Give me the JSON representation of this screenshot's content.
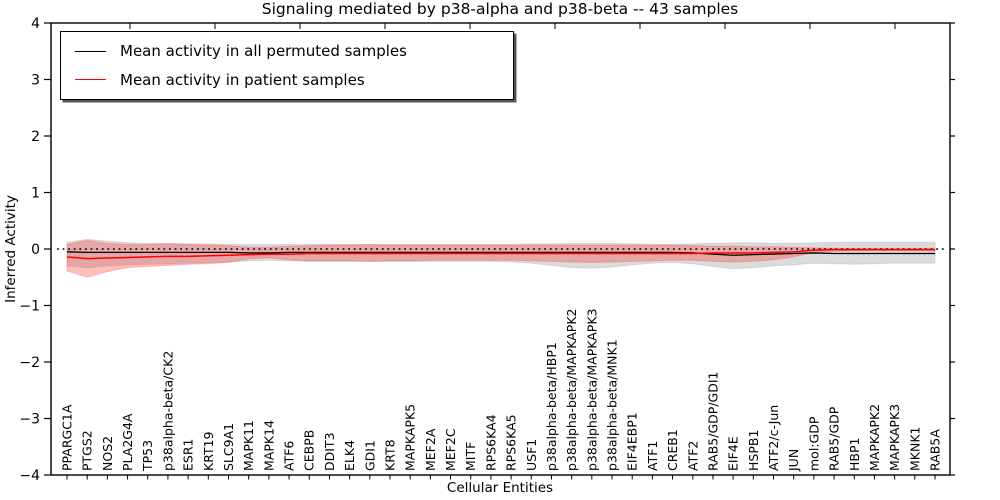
{
  "chart_data": {
    "type": "line",
    "title": "Signaling mediated by p38-alpha and p38-beta -- 43 samples",
    "xlabel": "Cellular Entities",
    "ylabel": "Inferred Activity",
    "ylim": [
      -4,
      4
    ],
    "ytick_values": [
      4,
      3,
      2,
      1,
      0,
      -1,
      -2,
      -3,
      -4
    ],
    "ytick_labels": [
      "4",
      "3",
      "2",
      "1",
      "0",
      "−1",
      "−2",
      "−3",
      "−4"
    ],
    "grid": false,
    "legend_position": "upper left",
    "categories": [
      "PPARGC1A",
      "PTGS2",
      "NOS2",
      "PLA2G4A",
      "TP53",
      "p38alpha-beta/CK2",
      "ESR1",
      "KRT19",
      "SLC9A1",
      "MAPK11",
      "MAPK14",
      "ATF6",
      "CEBPB",
      "DDIT3",
      "ELK4",
      "GDI1",
      "KRT8",
      "MAPKAPK5",
      "MEF2A",
      "MEF2C",
      "MITF",
      "RPS6KA4",
      "RPS6KA5",
      "USF1",
      "p38alpha-beta/HBP1",
      "p38alpha-beta/MAPKAPK2",
      "p38alpha-beta/MAPKAPK3",
      "p38alpha-beta/MNK1",
      "EIF4EBP1",
      "ATF1",
      "CREB1",
      "ATF2",
      "RAB5/GDP/GDI1",
      "EIF4E",
      "HSPB1",
      "ATF2/c-Jun",
      "JUN",
      "mol:GDP",
      "RAB5/GDP",
      "HBP1",
      "MAPKAPK2",
      "MAPKAPK3",
      "MKNK1",
      "RAB5A"
    ],
    "series": [
      {
        "name": "Mean activity in all permuted samples",
        "color": "#000000",
        "line_style": "solid",
        "width": 1.3,
        "values": [
          -0.05,
          -0.06,
          -0.06,
          -0.06,
          -0.06,
          -0.06,
          -0.06,
          -0.06,
          -0.06,
          -0.07,
          -0.07,
          -0.06,
          -0.06,
          -0.06,
          -0.06,
          -0.06,
          -0.06,
          -0.06,
          -0.06,
          -0.06,
          -0.06,
          -0.06,
          -0.06,
          -0.06,
          -0.06,
          -0.06,
          -0.06,
          -0.06,
          -0.06,
          -0.06,
          -0.06,
          -0.07,
          -0.09,
          -0.11,
          -0.1,
          -0.09,
          -0.08,
          -0.07,
          -0.08,
          -0.08,
          -0.08,
          -0.08,
          -0.08,
          -0.08
        ]
      },
      {
        "name": "Mean activity in patient samples",
        "color": "#ff0000",
        "line_style": "solid",
        "width": 1.5,
        "values": [
          -0.14,
          -0.17,
          -0.16,
          -0.15,
          -0.14,
          -0.13,
          -0.13,
          -0.12,
          -0.11,
          -0.1,
          -0.09,
          -0.09,
          -0.08,
          -0.08,
          -0.08,
          -0.08,
          -0.08,
          -0.08,
          -0.08,
          -0.08,
          -0.08,
          -0.08,
          -0.08,
          -0.08,
          -0.08,
          -0.08,
          -0.08,
          -0.08,
          -0.08,
          -0.08,
          -0.08,
          -0.08,
          -0.07,
          -0.07,
          -0.07,
          -0.06,
          -0.05,
          -0.02,
          -0.01,
          -0.01,
          -0.01,
          -0.01,
          -0.01,
          -0.01
        ]
      }
    ],
    "bands": [
      {
        "name": "permuted samples spread",
        "color": "#999999",
        "opacity": 0.35,
        "hi": [
          0.12,
          0.17,
          0.14,
          0.11,
          0.1,
          0.1,
          0.09,
          0.09,
          0.08,
          0.08,
          0.08,
          0.08,
          0.08,
          0.08,
          0.08,
          0.08,
          0.08,
          0.08,
          0.08,
          0.08,
          0.08,
          0.08,
          0.08,
          0.09,
          0.09,
          0.1,
          0.1,
          0.1,
          0.09,
          0.08,
          0.08,
          0.09,
          0.1,
          0.11,
          0.11,
          0.1,
          0.1,
          0.11,
          0.12,
          0.12,
          0.12,
          0.12,
          0.12,
          0.12
        ],
        "lo": [
          -0.3,
          -0.33,
          -0.3,
          -0.28,
          -0.27,
          -0.26,
          -0.25,
          -0.24,
          -0.23,
          -0.21,
          -0.2,
          -0.21,
          -0.22,
          -0.22,
          -0.22,
          -0.22,
          -0.22,
          -0.22,
          -0.22,
          -0.22,
          -0.22,
          -0.22,
          -0.23,
          -0.25,
          -0.29,
          -0.33,
          -0.34,
          -0.32,
          -0.28,
          -0.25,
          -0.24,
          -0.26,
          -0.31,
          -0.35,
          -0.33,
          -0.3,
          -0.28,
          -0.25,
          -0.26,
          -0.27,
          -0.26,
          -0.25,
          -0.25,
          -0.25
        ]
      },
      {
        "name": "patient samples spread",
        "color": "#ff2a2a",
        "opacity": 0.3,
        "hi": [
          0.08,
          0.15,
          0.1,
          0.08,
          0.08,
          0.09,
          0.08,
          0.07,
          0.06,
          0.03,
          0.03,
          0.05,
          0.06,
          0.07,
          0.07,
          0.08,
          0.07,
          0.07,
          0.07,
          0.07,
          0.07,
          0.07,
          0.07,
          0.07,
          0.07,
          0.07,
          0.07,
          0.07,
          0.07,
          0.07,
          0.07,
          0.06,
          0.05,
          0.05,
          0.04,
          0.04,
          0.03,
          0.02,
          0.01,
          0.01,
          0.01,
          0.01,
          0.01,
          0.01
        ],
        "lo": [
          -0.39,
          -0.5,
          -0.4,
          -0.33,
          -0.31,
          -0.29,
          -0.27,
          -0.26,
          -0.24,
          -0.17,
          -0.16,
          -0.19,
          -0.21,
          -0.21,
          -0.21,
          -0.22,
          -0.21,
          -0.21,
          -0.2,
          -0.2,
          -0.2,
          -0.2,
          -0.2,
          -0.21,
          -0.22,
          -0.23,
          -0.24,
          -0.23,
          -0.22,
          -0.21,
          -0.2,
          -0.2,
          -0.22,
          -0.23,
          -0.22,
          -0.19,
          -0.14,
          -0.06,
          -0.04,
          -0.03,
          -0.03,
          -0.03,
          -0.03,
          -0.03
        ]
      }
    ],
    "baseline": {
      "value": 0,
      "style": "dotted",
      "color": "#000000"
    }
  }
}
